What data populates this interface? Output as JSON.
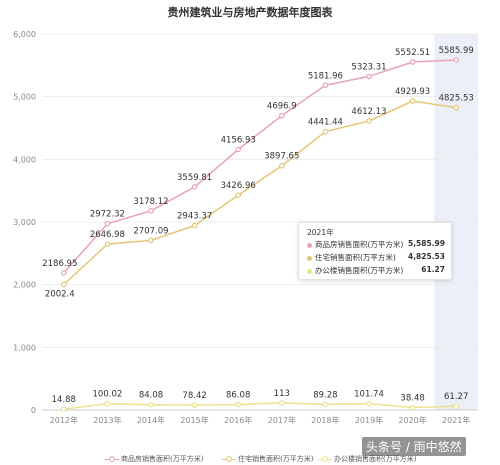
{
  "title": "贵州建筑业与房地产数据年度图表",
  "chart_data": {
    "type": "line",
    "title": "贵州建筑业与房地产数据年度图表",
    "xlabel": "",
    "ylabel": "",
    "categories": [
      "2012年",
      "2013年",
      "2014年",
      "2015年",
      "2016年",
      "2017年",
      "2018年",
      "2019年",
      "2020年",
      "2021年"
    ],
    "ylim": [
      0,
      6000
    ],
    "yticks": [
      "0",
      "1,000",
      "2,000",
      "3,000",
      "4,000",
      "5,000",
      "6,000"
    ],
    "grid": true,
    "legend_position": "bottom",
    "highlight_category": "2021年",
    "series": [
      {
        "name": "商品房销售面积(万平方米)",
        "color": "#e8a3b2",
        "values": [
          2186.95,
          2972.32,
          3178.12,
          3559.81,
          4156.93,
          4696.9,
          5181.96,
          5323.31,
          5552.51,
          5585.99
        ],
        "labels": [
          "2186.95",
          "2972.32",
          "3178.12",
          "3559.81",
          "4156.93",
          "4696.9",
          "5181.96",
          "5323.31",
          "5552.51",
          "5585.99"
        ]
      },
      {
        "name": "住宅销售面积(万平方米)",
        "color": "#e3c777",
        "values": [
          2002.4,
          2646.98,
          2707.09,
          2943.37,
          3426.96,
          3897.65,
          4441.44,
          4612.13,
          4929.93,
          4825.53
        ],
        "labels": [
          "2002.4",
          "2646.98",
          "2707.09",
          "2943.37",
          "3426.96",
          "3897.65",
          "4441.44",
          "4612.13",
          "4929.93",
          "4825.53"
        ]
      },
      {
        "name": "办公楼销售面积(万平方米)",
        "color": "#ece28a",
        "values": [
          14.88,
          100.02,
          84.08,
          78.42,
          86.08,
          113,
          89.28,
          101.74,
          38.48,
          61.27
        ],
        "labels": [
          "14.88",
          "100.02",
          "84.08",
          "78.42",
          "86.08",
          "113",
          "89.28",
          "101.74",
          "38.48",
          "61.27"
        ]
      }
    ]
  },
  "tooltip": {
    "title": "2021年",
    "rows": [
      {
        "name": "商品房销售面积(万平方米)",
        "value": "5,585.99",
        "color": "#e8a3b2"
      },
      {
        "name": "住宅销售面积(万平方米)",
        "value": "4,825.53",
        "color": "#e3c777"
      },
      {
        "name": "办公楼销售面积(万平方米)",
        "value": "61.27",
        "color": "#ece28a"
      }
    ]
  },
  "watermark": "头条号 / 雨中悠然"
}
